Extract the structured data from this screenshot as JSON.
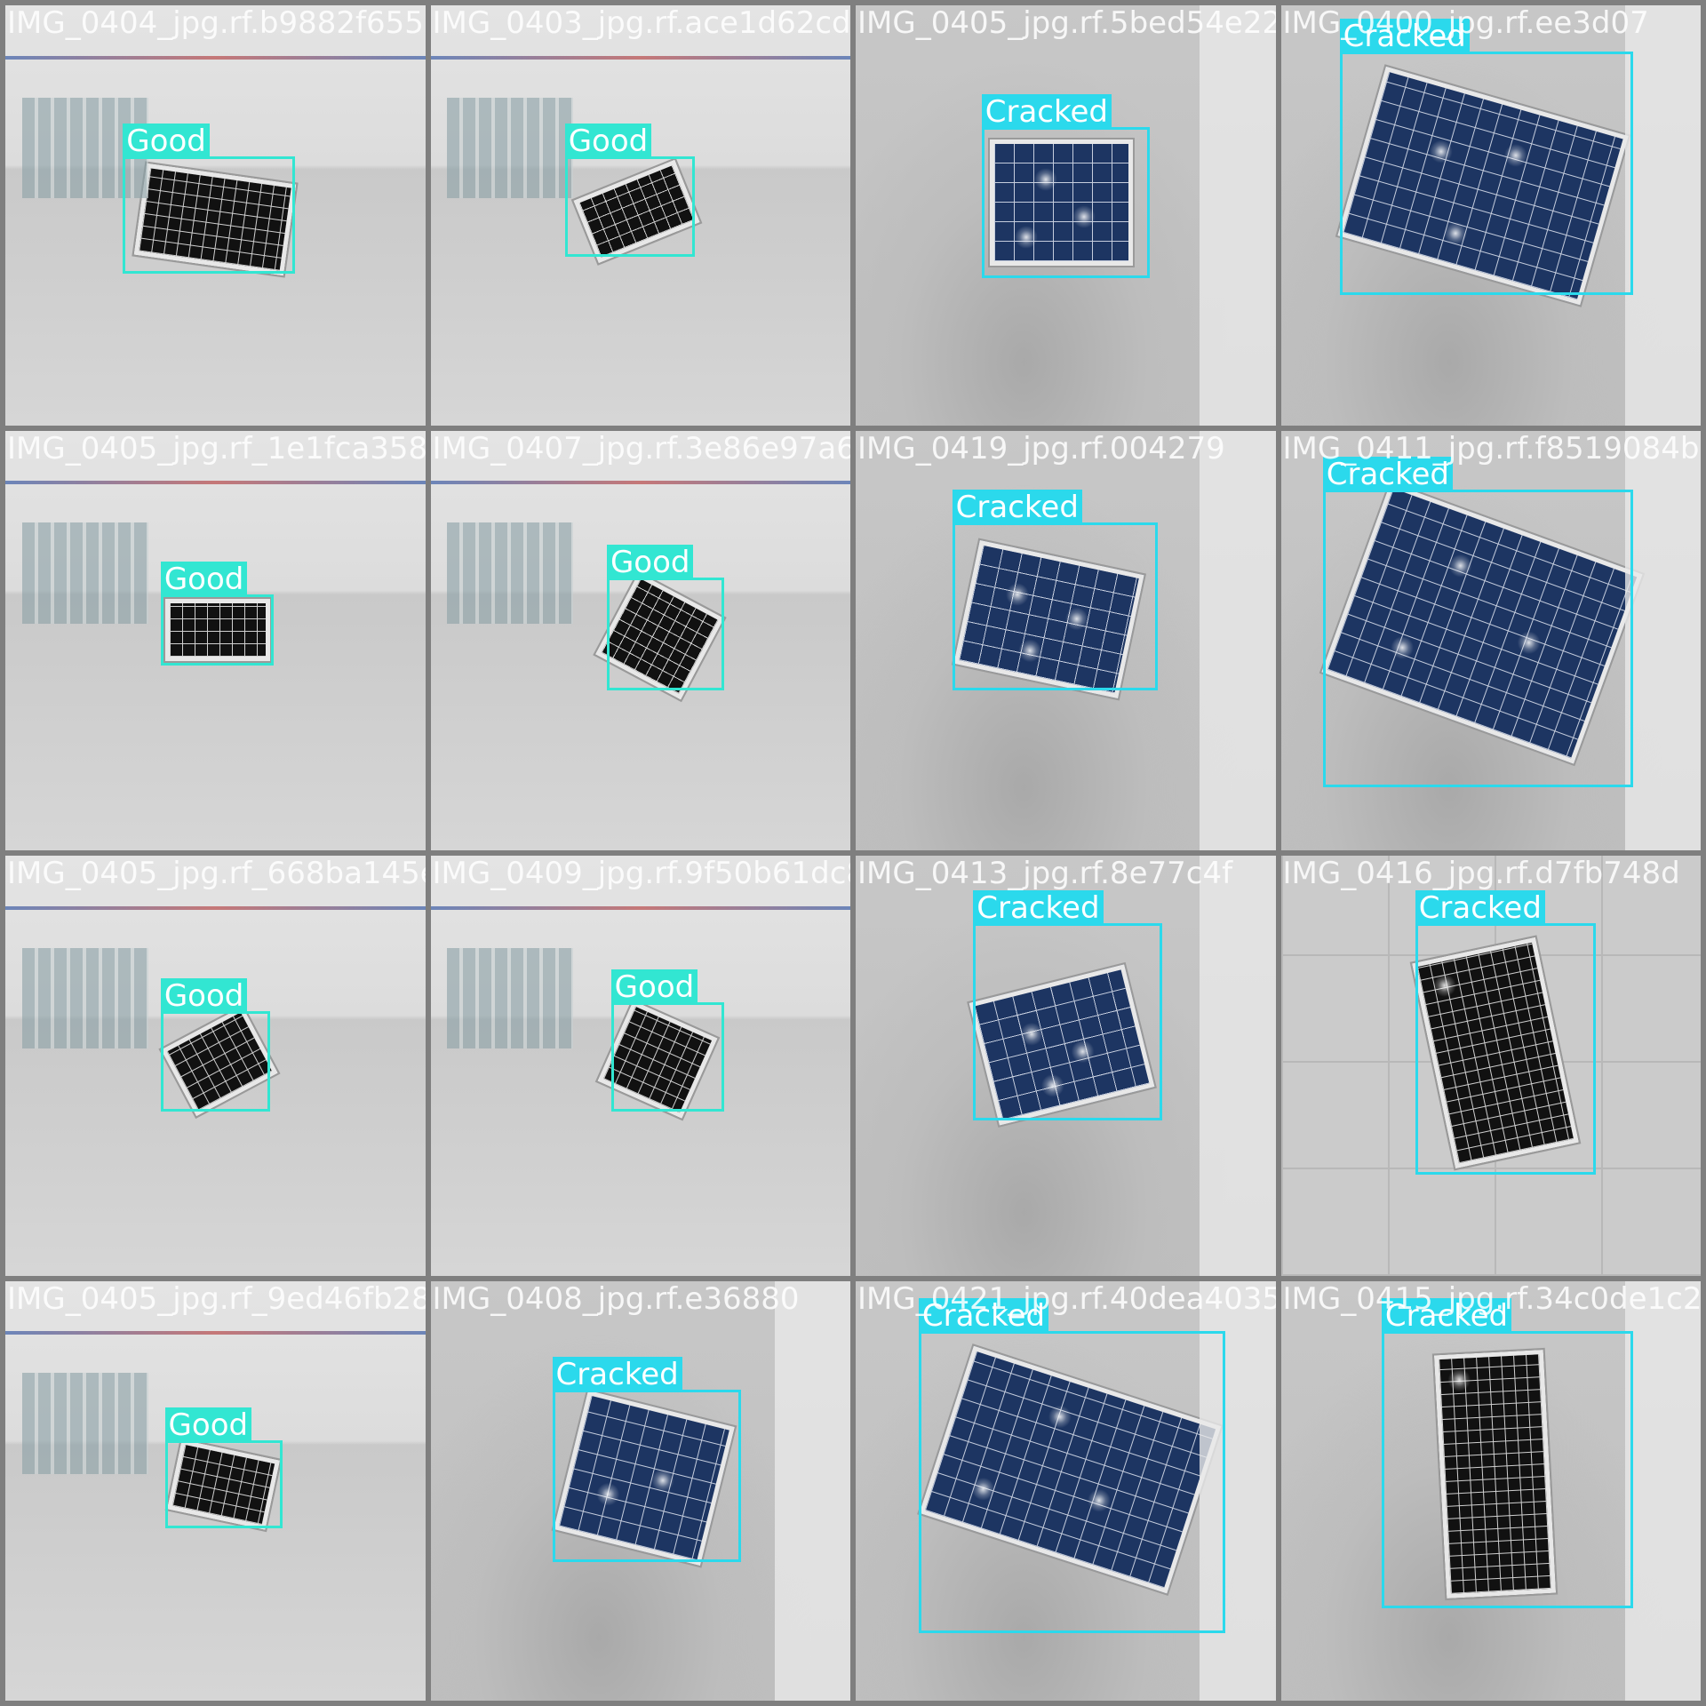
{
  "mosaic": {
    "tiles": [
      {
        "filename": "IMG_0404_jpg.rf.b9882f6557f0c1c7063ae4dface1d62cd9",
        "label": "Good"
      },
      {
        "filename": "IMG_0403_jpg.rf.ace1d62cd95",
        "label": "Good"
      },
      {
        "filename": "IMG_0405_jpg.rf.5bed54e22d6",
        "label": "Cracked"
      },
      {
        "filename": "IMG_0400_jpg.rf.ee3d07",
        "label": "Cracked"
      },
      {
        "filename": "IMG_0405_jpg.rf_1e1fca3580c6b0c7d1c.3e86e97a6f",
        "label": "Good"
      },
      {
        "filename": "IMG_0407_jpg.rf.3e86e97a6f",
        "label": "Good"
      },
      {
        "filename": "IMG_0419_jpg.rf.004279",
        "label": "Cracked"
      },
      {
        "filename": "IMG_0411_jpg.rf.f8519084bac",
        "label": "Cracked"
      },
      {
        "filename": "IMG_0405_jpg.rf_668ba145e6d3b80795e9f50b61dc83f",
        "label": "Good"
      },
      {
        "filename": "IMG_0409_jpg.rf.9f50b61dc83",
        "label": "Good"
      },
      {
        "filename": "IMG_0413_jpg.rf.8e77c4f",
        "label": "Cracked"
      },
      {
        "filename": "IMG_0416_jpg.rf.d7fb748d",
        "label": "Cracked"
      },
      {
        "filename": "IMG_0405_jpg.rf_9ed46fb280bdd94795bcfe36880",
        "label": "Good"
      },
      {
        "filename": "IMG_0408_jpg.rf.e36880",
        "label": "Cracked"
      },
      {
        "filename": "IMG_0421_jpg.rf.40dea4035",
        "label": "Cracked"
      },
      {
        "filename": "IMG_0415_jpg.rf.34c0de1c2",
        "label": "Cracked"
      }
    ]
  },
  "colors": {
    "good_box": "#32e6d2",
    "cracked_box": "#2bd9ec",
    "grid_border": "#7f7f7f"
  }
}
